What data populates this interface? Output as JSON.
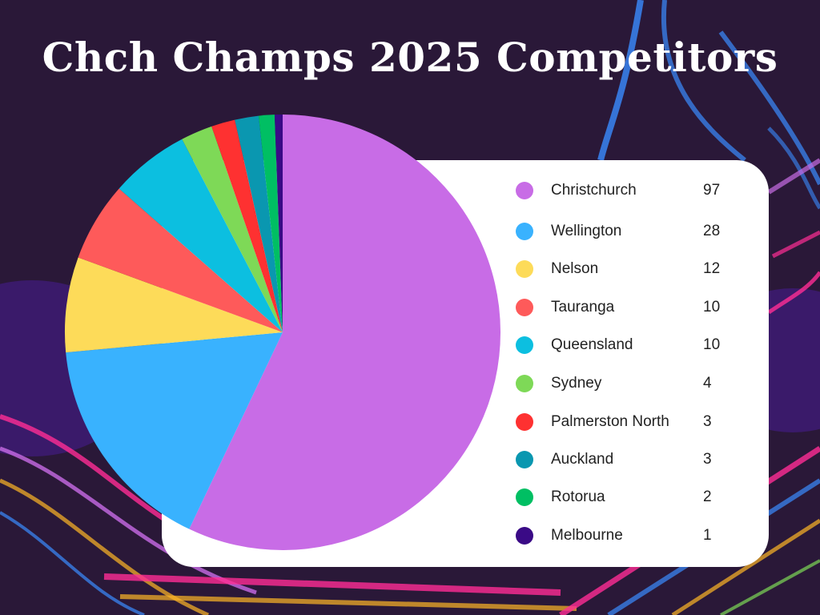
{
  "title": "Chch Champs 2025 Competitors",
  "chart_data": {
    "type": "pie",
    "title": "Chch Champs 2025 Competitors",
    "slices": [
      {
        "label": "Christchurch",
        "value": 97,
        "color": "#c86ce6"
      },
      {
        "label": "Wellington",
        "value": 28,
        "color": "#39b2fe"
      },
      {
        "label": "Nelson",
        "value": 12,
        "color": "#fddb59"
      },
      {
        "label": "Tauranga",
        "value": 10,
        "color": "#fe5a5a"
      },
      {
        "label": "Queensland",
        "value": 10,
        "color": "#0cbfe0"
      },
      {
        "label": "Sydney",
        "value": 4,
        "color": "#7ed957"
      },
      {
        "label": "Palmerston North",
        "value": 3,
        "color": "#fe3131"
      },
      {
        "label": "Auckland",
        "value": 3,
        "color": "#0a97b0"
      },
      {
        "label": "Rotorua",
        "value": 2,
        "color": "#00bf63"
      },
      {
        "label": "Melbourne",
        "value": 1,
        "color": "#3a0a86"
      }
    ],
    "legend_placement": "right",
    "start_angle": "top, clockwise"
  },
  "background": {
    "base": "#2a1838",
    "accent_colors": [
      "#4b2a8a",
      "#ff2d95",
      "#3a8cff",
      "#ffb627",
      "#c86ce6"
    ]
  }
}
